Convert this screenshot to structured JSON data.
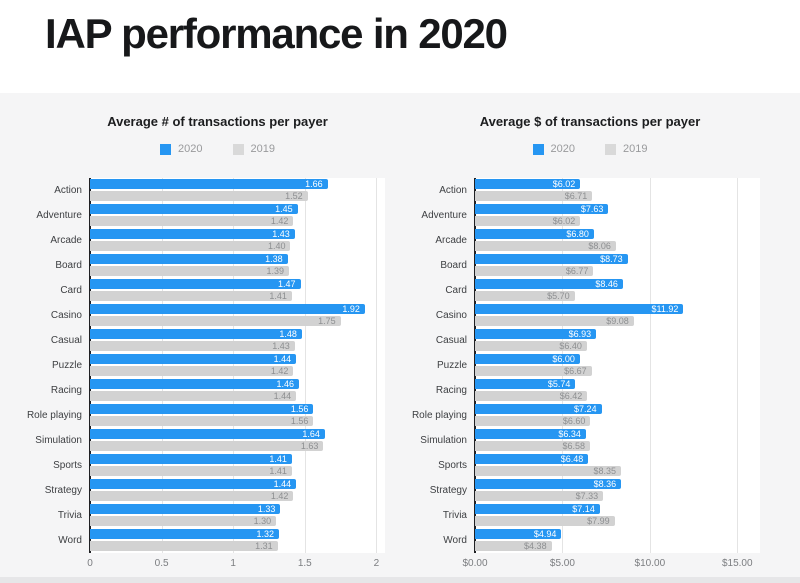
{
  "page": {
    "title": "IAP performance in 2020"
  },
  "colors": {
    "series_2020": "#2696F2",
    "series_2019": "#D2D2D2",
    "legend_2019_swatch": "#D9D9D9",
    "header_bg": "#FFFFFF",
    "page_bg": "#F5F5F6",
    "plot_bg": "#FFFFFF",
    "gridline": "#E4E4E4",
    "axis_line": "#202124"
  },
  "chart_data": [
    {
      "type": "bar",
      "orientation": "horizontal",
      "title": "Average # of transactions per payer",
      "xlabel": "",
      "ylabel": "",
      "legend_position": "top",
      "grid": true,
      "xlim": [
        0,
        2.06
      ],
      "categories": [
        "Action",
        "Adventure",
        "Arcade",
        "Board",
        "Card",
        "Casino",
        "Casual",
        "Puzzle",
        "Racing",
        "Role playing",
        "Simulation",
        "Sports",
        "Strategy",
        "Trivia",
        "Word"
      ],
      "ticks": [
        {
          "label": "0",
          "value": 0
        },
        {
          "label": "0.5",
          "value": 0.5
        },
        {
          "label": "1",
          "value": 1
        },
        {
          "label": "1.5",
          "value": 1.5
        },
        {
          "label": "2",
          "value": 2
        }
      ],
      "series": [
        {
          "name": "2020",
          "values": [
            1.66,
            1.45,
            1.43,
            1.38,
            1.47,
            1.92,
            1.48,
            1.44,
            1.46,
            1.56,
            1.64,
            1.41,
            1.44,
            1.33,
            1.32
          ],
          "display": [
            "1.66",
            "1.45",
            "1.43",
            "1.38",
            "1.47",
            "1.92",
            "1.48",
            "1.44",
            "1.46",
            "1.56",
            "1.64",
            "1.41",
            "1.44",
            "1.33",
            "1.32"
          ]
        },
        {
          "name": "2019",
          "values": [
            1.52,
            1.42,
            1.4,
            1.39,
            1.41,
            1.75,
            1.43,
            1.42,
            1.44,
            1.56,
            1.63,
            1.41,
            1.42,
            1.3,
            1.31
          ],
          "display": [
            "1.52",
            "1.42",
            "1.40",
            "1.39",
            "1.41",
            "1.75",
            "1.43",
            "1.42",
            "1.44",
            "1.56",
            "1.63",
            "1.41",
            "1.42",
            "1.30",
            "1.31"
          ]
        }
      ]
    },
    {
      "type": "bar",
      "orientation": "horizontal",
      "title": "Average $ of transactions per payer",
      "xlabel": "",
      "ylabel": "",
      "legend_position": "top",
      "grid": true,
      "xlim": [
        0,
        16.3
      ],
      "categories": [
        "Action",
        "Adventure",
        "Arcade",
        "Board",
        "Card",
        "Casino",
        "Casual",
        "Puzzle",
        "Racing",
        "Role playing",
        "Simulation",
        "Sports",
        "Strategy",
        "Trivia",
        "Word"
      ],
      "ticks": [
        {
          "label": "$0.00",
          "value": 0
        },
        {
          "label": "$5.00",
          "value": 5
        },
        {
          "label": "$10.00",
          "value": 10
        },
        {
          "label": "$15.00",
          "value": 15
        }
      ],
      "series": [
        {
          "name": "2020",
          "values": [
            6.02,
            7.63,
            6.8,
            8.73,
            8.46,
            11.92,
            6.93,
            6.0,
            5.74,
            7.24,
            6.34,
            6.48,
            8.36,
            7.14,
            4.94
          ],
          "display": [
            "$6.02",
            "$7.63",
            "$6.80",
            "$8.73",
            "$8.46",
            "$11.92",
            "$6.93",
            "$6.00",
            "$5.74",
            "$7.24",
            "$6.34",
            "$6.48",
            "$8.36",
            "$7.14",
            "$4.94"
          ]
        },
        {
          "name": "2019",
          "values": [
            6.71,
            6.02,
            8.06,
            6.77,
            5.7,
            9.08,
            6.4,
            6.67,
            6.42,
            6.6,
            6.58,
            8.35,
            7.33,
            7.99,
            4.38
          ],
          "display": [
            "$6.71",
            "$6.02",
            "$8.06",
            "$6.77",
            "$5.70",
            "$9.08",
            "$6.40",
            "$6.67",
            "$6.42",
            "$6.60",
            "$6.58",
            "$8.35",
            "$7.33",
            "$7.99",
            "$4.38"
          ]
        }
      ]
    }
  ]
}
